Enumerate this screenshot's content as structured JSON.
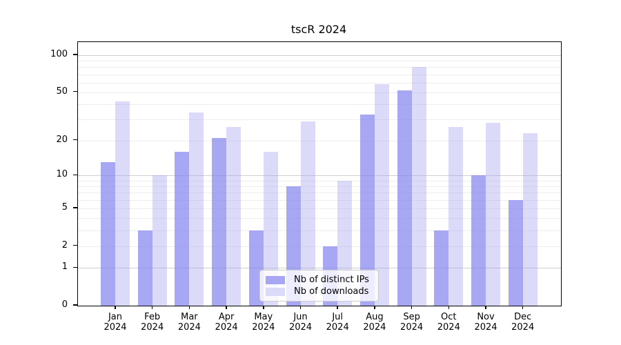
{
  "title": "tscR 2024",
  "chart_data": {
    "type": "bar",
    "title": "tscR 2024",
    "xlabel": "",
    "ylabel": "",
    "categories": [
      "Jan",
      "Feb",
      "Mar",
      "Apr",
      "May",
      "Jun",
      "Jul",
      "Aug",
      "Sep",
      "Oct",
      "Nov",
      "Dec"
    ],
    "year": "2024",
    "series": [
      {
        "name": "Nb of distinct IPs",
        "values": [
          13,
          3,
          16,
          21,
          3,
          8,
          2,
          33,
          52,
          3,
          10,
          6
        ],
        "bar_color": "rgba(130,130,238,0.70)",
        "swatch_color": "#a7a7f3"
      },
      {
        "name": "Nb of downloads",
        "values": [
          42,
          10,
          34,
          26,
          16,
          29,
          9,
          58,
          80,
          26,
          28,
          23
        ],
        "bar_color": "rgba(160,160,240,0.38)",
        "swatch_color": "#dbdbf9"
      }
    ],
    "yscale": "log1p",
    "y_ticks": [
      0,
      1,
      2,
      5,
      10,
      20,
      50,
      100
    ],
    "gridlines_major": [
      1,
      10,
      100
    ],
    "gridlines_minor": [
      2,
      3,
      4,
      5,
      6,
      7,
      8,
      9,
      20,
      30,
      40,
      50,
      60,
      70,
      80,
      90
    ],
    "grid_on": true,
    "legend_position": "bottom-center",
    "colors": {
      "grid_major": "#cfcfcf",
      "grid_minor": "#ededed",
      "spine": "#000000"
    }
  }
}
